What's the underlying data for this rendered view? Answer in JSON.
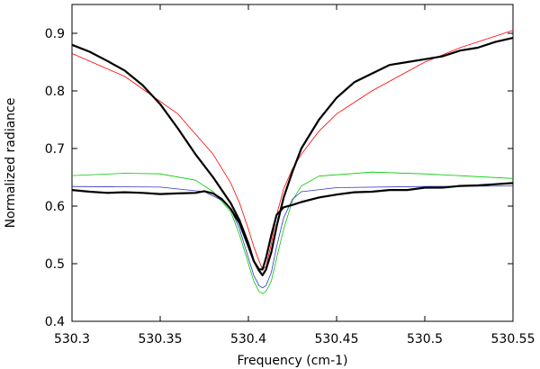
{
  "chart_data": {
    "type": "line",
    "title": "",
    "xlabel": "Frequency (cm-1)",
    "ylabel": "Normalized radiance",
    "xlim": [
      530.3,
      530.55
    ],
    "ylim": [
      0.4,
      0.95
    ],
    "x_ticks": [
      530.3,
      530.35,
      530.4,
      530.45,
      530.5,
      530.55
    ],
    "x_tick_labels": [
      "530.3",
      "530.35",
      "530.4",
      "530.45",
      "530.5",
      "530.55"
    ],
    "y_ticks": [
      0.4,
      0.5,
      0.6,
      0.7,
      0.8,
      0.9
    ],
    "y_tick_labels": [
      "0.4",
      "0.5",
      "0.6",
      "0.7",
      "0.8",
      "0.9"
    ],
    "grid": false,
    "series": [
      {
        "color": "#ff0000",
        "line_width": 0.8,
        "x": [
          530.3,
          530.33,
          530.36,
          530.38,
          530.39,
          530.395,
          530.4,
          530.403,
          530.406,
          530.408,
          530.41,
          530.413,
          530.416,
          530.42,
          530.425,
          530.43,
          530.44,
          530.45,
          530.47,
          530.5,
          530.52,
          530.55
        ],
        "y": [
          0.865,
          0.825,
          0.76,
          0.69,
          0.64,
          0.605,
          0.56,
          0.53,
          0.505,
          0.49,
          0.495,
          0.535,
          0.585,
          0.63,
          0.665,
          0.69,
          0.73,
          0.76,
          0.8,
          0.85,
          0.875,
          0.905
        ]
      },
      {
        "color": "#00cc00",
        "line_width": 0.8,
        "x": [
          530.3,
          530.33,
          530.35,
          530.37,
          530.38,
          530.39,
          530.395,
          530.4,
          530.403,
          530.406,
          530.408,
          530.41,
          530.413,
          530.416,
          530.42,
          530.425,
          530.43,
          530.44,
          530.47,
          530.5,
          530.55
        ],
        "y": [
          0.653,
          0.657,
          0.656,
          0.645,
          0.625,
          0.59,
          0.55,
          0.5,
          0.47,
          0.452,
          0.448,
          0.452,
          0.47,
          0.51,
          0.56,
          0.61,
          0.635,
          0.652,
          0.659,
          0.656,
          0.648
        ]
      },
      {
        "color": "#3333cc",
        "line_width": 0.8,
        "x": [
          530.3,
          530.35,
          530.375,
          530.385,
          530.39,
          530.395,
          530.4,
          530.403,
          530.406,
          530.408,
          530.41,
          530.413,
          530.416,
          530.42,
          530.425,
          530.43,
          530.45,
          530.5,
          530.55
        ],
        "y": [
          0.634,
          0.633,
          0.625,
          0.61,
          0.595,
          0.56,
          0.51,
          0.48,
          0.462,
          0.458,
          0.462,
          0.485,
          0.53,
          0.58,
          0.612,
          0.625,
          0.632,
          0.634,
          0.635
        ]
      },
      {
        "color": "#000000",
        "line_width": 2.2,
        "x": [
          530.3,
          530.31,
          530.32,
          530.33,
          530.34,
          530.35,
          530.36,
          530.37,
          530.38,
          530.39,
          530.395,
          530.4,
          530.403,
          530.406,
          530.408,
          530.41,
          530.413,
          530.416,
          530.42,
          530.425,
          530.43,
          530.44,
          530.45,
          530.46,
          530.47,
          530.48,
          530.49,
          530.5,
          530.51,
          530.52,
          530.53,
          530.54,
          530.55
        ],
        "y": [
          0.88,
          0.868,
          0.852,
          0.835,
          0.81,
          0.777,
          0.735,
          0.69,
          0.65,
          0.605,
          0.575,
          0.535,
          0.505,
          0.488,
          0.48,
          0.49,
          0.52,
          0.565,
          0.615,
          0.66,
          0.7,
          0.75,
          0.788,
          0.815,
          0.83,
          0.845,
          0.85,
          0.855,
          0.86,
          0.87,
          0.875,
          0.885,
          0.892
        ]
      },
      {
        "color": "#000000",
        "line_width": 2.2,
        "x": [
          530.3,
          530.31,
          530.32,
          530.33,
          530.34,
          530.35,
          530.36,
          530.37,
          530.375,
          530.38,
          530.385,
          530.39,
          530.395,
          530.4,
          530.403,
          530.406,
          530.408,
          530.41,
          530.413,
          530.416,
          530.42,
          530.425,
          530.43,
          530.44,
          530.45,
          530.46,
          530.47,
          530.48,
          530.49,
          530.5,
          530.51,
          530.52,
          530.53,
          530.54,
          530.55
        ],
        "y": [
          0.628,
          0.625,
          0.623,
          0.624,
          0.623,
          0.621,
          0.622,
          0.623,
          0.626,
          0.622,
          0.612,
          0.595,
          0.57,
          0.53,
          0.505,
          0.49,
          0.49,
          0.51,
          0.55,
          0.585,
          0.598,
          0.602,
          0.607,
          0.615,
          0.62,
          0.624,
          0.625,
          0.628,
          0.628,
          0.632,
          0.632,
          0.635,
          0.636,
          0.638,
          0.64
        ]
      }
    ]
  }
}
